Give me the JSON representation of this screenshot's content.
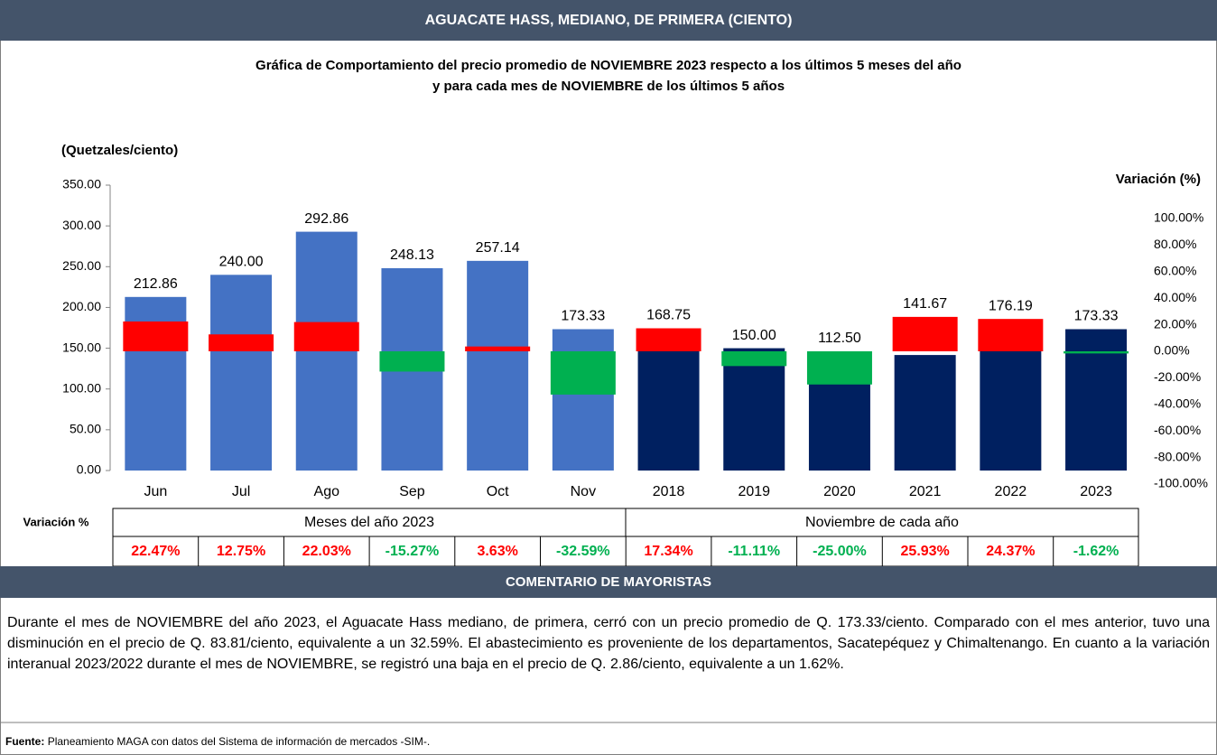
{
  "chart_data": {
    "type": "bar",
    "title": "AGUACATE HASS, MEDIANO, DE PRIMERA (CIENTO)",
    "subtitle": [
      "Gráfica de Comportamiento del precio promedio de NOVIEMBRE 2023 respecto a los últimos 5 meses del año",
      "y para cada mes de NOVIEMBRE de los últimos 5 años"
    ],
    "y_label": "(Quetzales/ciento)",
    "y2_label": "Variación (%)",
    "categories": [
      "Jun",
      "Jul",
      "Ago",
      "Sep",
      "Oct",
      "Nov",
      "2018",
      "2019",
      "2020",
      "2021",
      "2022",
      "2023"
    ],
    "series": [
      {
        "values": [
          212.86,
          240.0,
          292.86,
          248.13,
          257.14,
          173.33,
          168.75,
          150.0,
          112.5,
          141.67,
          176.19,
          173.33
        ],
        "value_labels": [
          "212.86",
          "240.00",
          "292.86",
          "248.13",
          "257.14",
          "173.33",
          "168.75",
          "150.00",
          "112.50",
          "141.67",
          "176.19",
          "173.33"
        ],
        "colors": [
          "#4472c4",
          "#4472c4",
          "#4472c4",
          "#4472c4",
          "#4472c4",
          "#4472c4",
          "#002060",
          "#002060",
          "#002060",
          "#002060",
          "#002060",
          "#002060"
        ]
      },
      {
        "axis": "y2",
        "values": [
          22.47,
          12.75,
          22.03,
          -15.27,
          3.63,
          -32.59,
          17.34,
          -11.11,
          -25.0,
          25.93,
          24.37,
          -1.62
        ],
        "value_labels": [
          "22.47%",
          "12.75%",
          "22.03%",
          "-15.27%",
          "3.63%",
          "-32.59%",
          "17.34%",
          "-11.11%",
          "-25.00%",
          "25.93%",
          "24.37%",
          "-1.62%"
        ],
        "colors": [
          "#ff0000",
          "#ff0000",
          "#ff0000",
          "#00b050",
          "#ff0000",
          "#00b050",
          "#ff0000",
          "#00b050",
          "#00b050",
          "#ff0000",
          "#ff0000",
          "#00b050"
        ]
      }
    ],
    "ylim": [
      0,
      350
    ],
    "yticks": [
      {
        "value": 0,
        "label": "0.00"
      },
      {
        "value": 50,
        "label": "50.00"
      },
      {
        "value": 100,
        "label": "100.00"
      },
      {
        "value": 150,
        "label": "150.00"
      },
      {
        "value": 200,
        "label": "200.00"
      },
      {
        "value": 250,
        "label": "250.00"
      },
      {
        "value": 300,
        "label": "300.00"
      },
      {
        "value": 350,
        "label": "350.00"
      }
    ],
    "y2lim": [
      -100,
      100
    ],
    "y2ticks": [
      {
        "value": -100,
        "label": "-100.00%"
      },
      {
        "value": -80,
        "label": "-80.00%"
      },
      {
        "value": -60,
        "label": "-60.00%"
      },
      {
        "value": -40,
        "label": "-40.00%"
      },
      {
        "value": -20,
        "label": "-20.00%"
      },
      {
        "value": 0,
        "label": "0.00%"
      },
      {
        "value": 20,
        "label": "20.00%"
      },
      {
        "value": 40,
        "label": "40.00%"
      },
      {
        "value": 60,
        "label": "60.00%"
      },
      {
        "value": 80,
        "label": "80.00%"
      },
      {
        "value": 100,
        "label": "100.00%"
      }
    ],
    "table": {
      "row_label": "Variación %",
      "groups": [
        "Meses del año 2023",
        "Noviembre de cada año"
      ]
    }
  },
  "comment": {
    "title": "COMENTARIO DE MAYORISTAS",
    "text": "Durante el mes de NOVIEMBRE del año 2023, el Aguacate Hass mediano, de primera, cerró con un precio promedio de Q. 173.33/ciento. Comparado con el mes anterior, tuvo una disminución en el precio de Q. 83.81/ciento, equivalente a un 32.59%. El abastecimiento es proveniente de los departamentos, Sacatepéquez y Chimaltenango. En cuanto a la variación interanual 2023/2022 durante el mes de NOVIEMBRE, se registró una baja en el precio de Q. 2.86/ciento, equivalente a un 1.62%."
  },
  "source": {
    "label": "Fuente:",
    "text": "Planeamiento MAGA con datos del Sistema de información de mercados -SIM-."
  }
}
